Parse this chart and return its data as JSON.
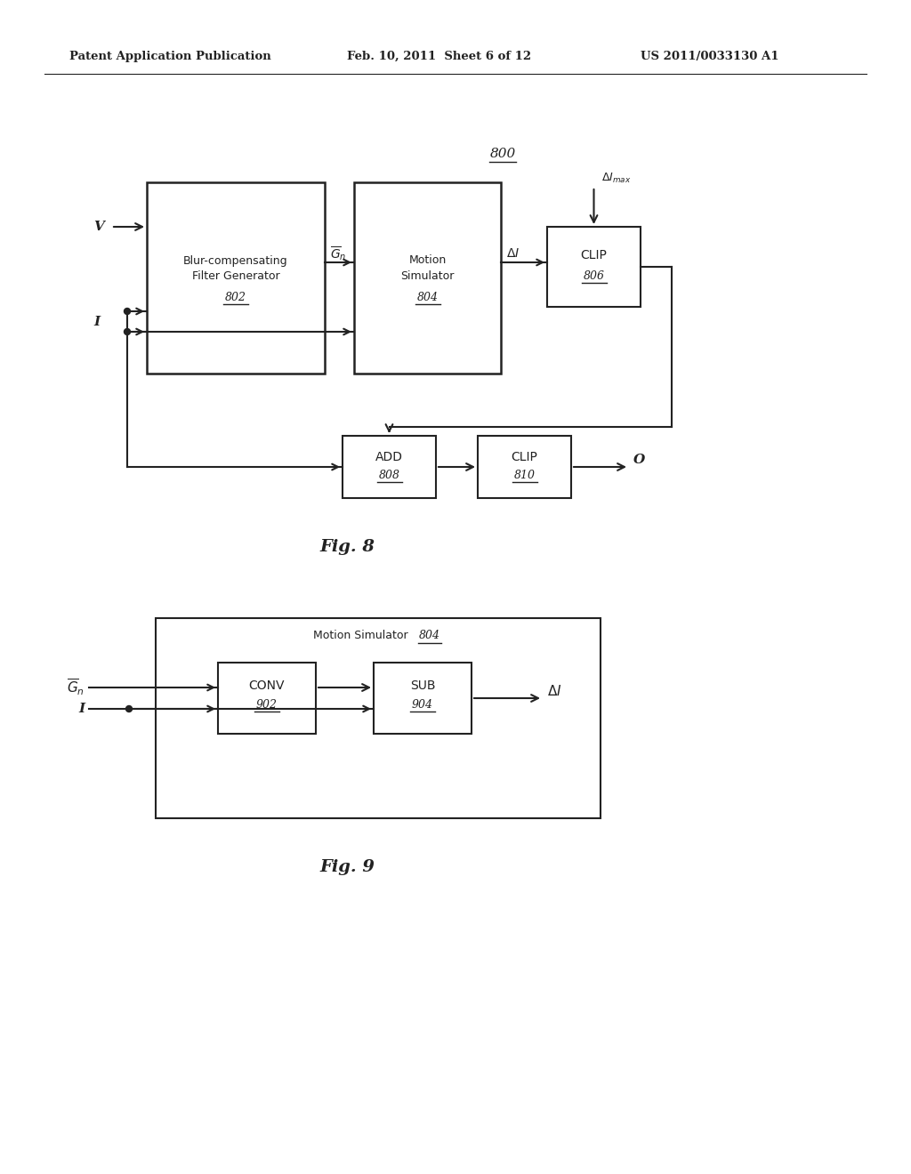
{
  "bg_color": "#ffffff",
  "header_left": "Patent Application Publication",
  "header_mid": "Feb. 10, 2011  Sheet 6 of 12",
  "header_right": "US 2011/0033130 A1",
  "fig8_label": "800",
  "fig8_caption": "Fig. 8",
  "fig9_caption": "Fig. 9",
  "text_color": "#222222",
  "line_color": "#222222"
}
